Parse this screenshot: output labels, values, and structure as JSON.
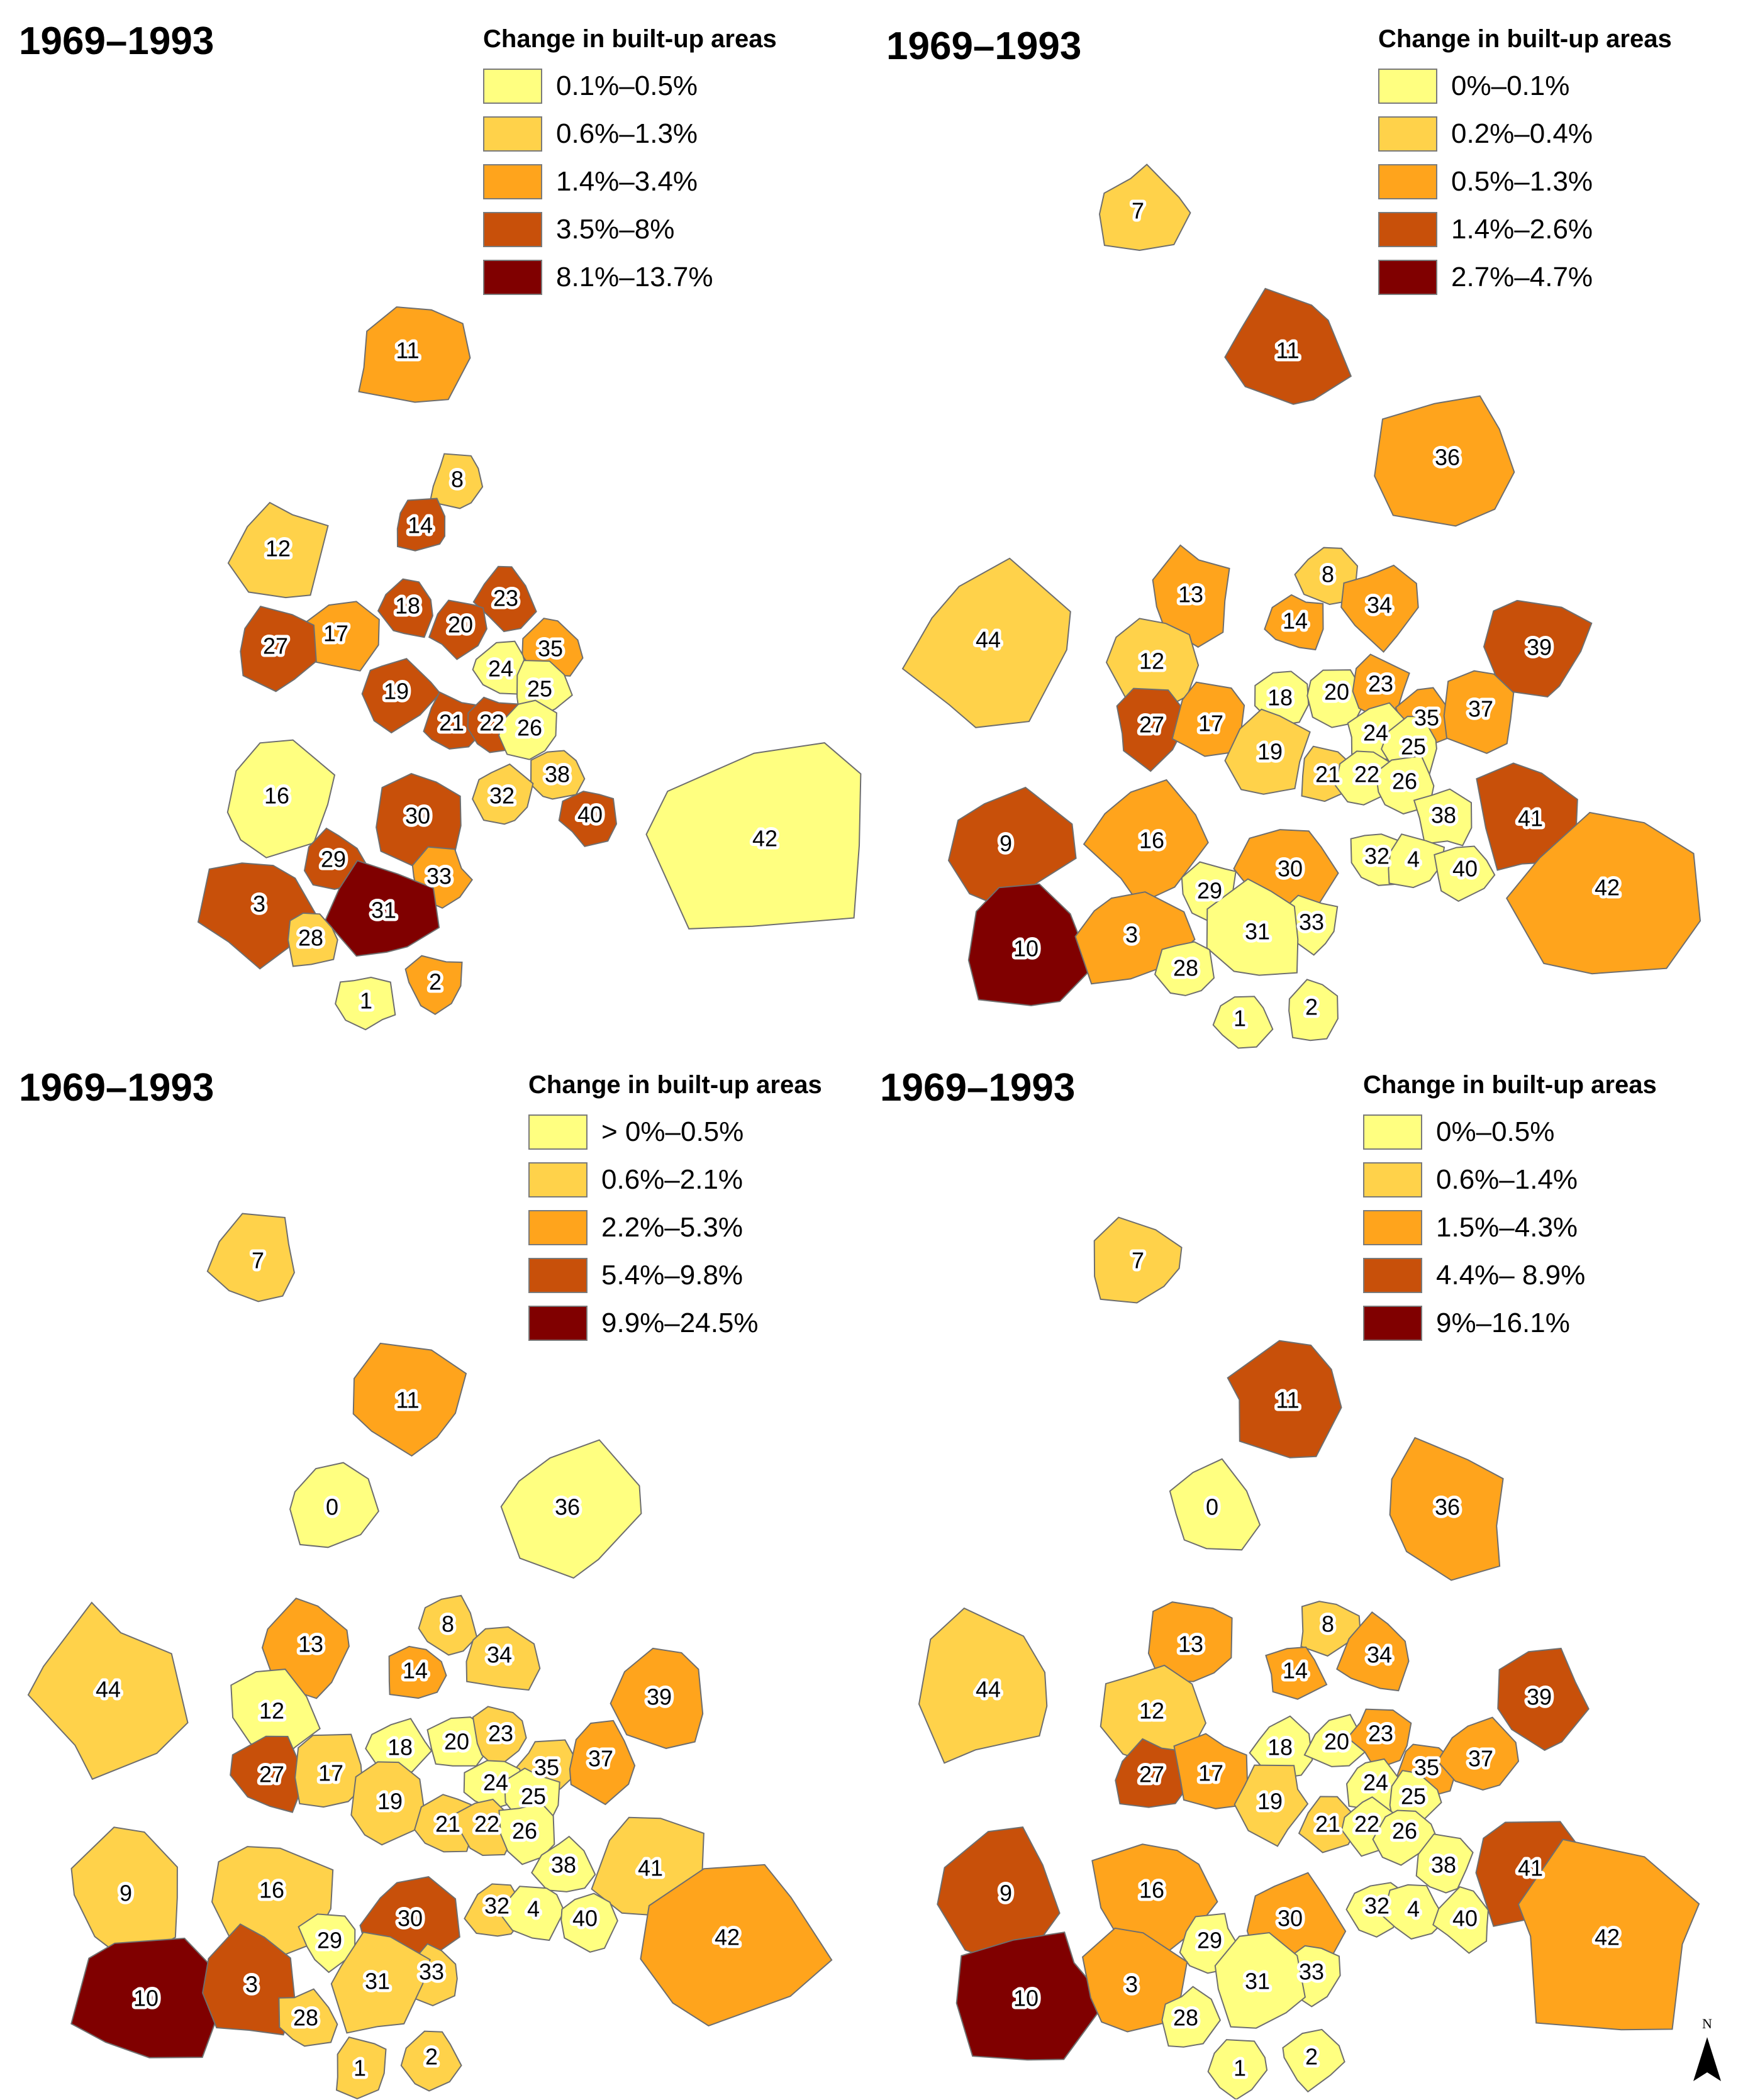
{
  "colors": {
    "c1": "#ffff80",
    "c2": "#ffd24a",
    "c3": "#ffa41c",
    "c4": "#c8500a",
    "c5": "#800000",
    "outline": "#6e6e6e"
  },
  "panels": [
    {
      "title": "1969–1993",
      "legend_title": "Change in built-up areas",
      "legend": [
        {
          "label": "0.1%–0.5%",
          "color": "#ffff80"
        },
        {
          "label": "0.6%–1.3%",
          "color": "#ffd24a"
        },
        {
          "label": "1.4%–3.4%",
          "color": "#ffa41c"
        },
        {
          "label": "3.5%–8%",
          "color": "#c8500a"
        },
        {
          "label": "8.1%–13.7%",
          "color": "#800000"
        }
      ],
      "regions": [
        {
          "id": "11",
          "cls": 3
        },
        {
          "id": "8",
          "cls": 2
        },
        {
          "id": "12",
          "cls": 2
        },
        {
          "id": "14",
          "cls": 4
        },
        {
          "id": "17",
          "cls": 3
        },
        {
          "id": "18",
          "cls": 4
        },
        {
          "id": "23",
          "cls": 4
        },
        {
          "id": "20",
          "cls": 4
        },
        {
          "id": "27",
          "cls": 4
        },
        {
          "id": "35",
          "cls": 3
        },
        {
          "id": "24",
          "cls": 1
        },
        {
          "id": "25",
          "cls": 1
        },
        {
          "id": "19",
          "cls": 4
        },
        {
          "id": "21",
          "cls": 4
        },
        {
          "id": "22",
          "cls": 4
        },
        {
          "id": "26",
          "cls": 1
        },
        {
          "id": "16",
          "cls": 1
        },
        {
          "id": "38",
          "cls": 2
        },
        {
          "id": "40",
          "cls": 4
        },
        {
          "id": "32",
          "cls": 2
        },
        {
          "id": "30",
          "cls": 4
        },
        {
          "id": "3",
          "cls": 4
        },
        {
          "id": "29",
          "cls": 4
        },
        {
          "id": "33",
          "cls": 3
        },
        {
          "id": "31",
          "cls": 5
        },
        {
          "id": "28",
          "cls": 2
        },
        {
          "id": "2",
          "cls": 3
        },
        {
          "id": "1",
          "cls": 1
        },
        {
          "id": "42",
          "cls": 1
        }
      ]
    },
    {
      "title": "1969–1993",
      "legend_title": "Change in built-up areas",
      "legend": [
        {
          "label": "0%–0.1%",
          "color": "#ffff80"
        },
        {
          "label": "0.2%–0.4%",
          "color": "#ffd24a"
        },
        {
          "label": "0.5%–1.3%",
          "color": "#ffa41c"
        },
        {
          "label": "1.4%–2.6%",
          "color": "#c8500a"
        },
        {
          "label": "2.7%–4.7%",
          "color": "#800000"
        }
      ],
      "regions": [
        {
          "id": "7",
          "cls": 2
        },
        {
          "id": "11",
          "cls": 4
        },
        {
          "id": "36",
          "cls": 3
        },
        {
          "id": "13",
          "cls": 3
        },
        {
          "id": "8",
          "cls": 2
        },
        {
          "id": "14",
          "cls": 3
        },
        {
          "id": "34",
          "cls": 3
        },
        {
          "id": "44",
          "cls": 2
        },
        {
          "id": "12",
          "cls": 2
        },
        {
          "id": "39",
          "cls": 4
        },
        {
          "id": "18",
          "cls": 1
        },
        {
          "id": "20",
          "cls": 1
        },
        {
          "id": "23",
          "cls": 3
        },
        {
          "id": "27",
          "cls": 4
        },
        {
          "id": "17",
          "cls": 3
        },
        {
          "id": "35",
          "cls": 3
        },
        {
          "id": "37",
          "cls": 3
        },
        {
          "id": "24",
          "cls": 1
        },
        {
          "id": "19",
          "cls": 2
        },
        {
          "id": "25",
          "cls": 1
        },
        {
          "id": "21",
          "cls": 2
        },
        {
          "id": "22",
          "cls": 1
        },
        {
          "id": "26",
          "cls": 1
        },
        {
          "id": "38",
          "cls": 1
        },
        {
          "id": "41",
          "cls": 4
        },
        {
          "id": "9",
          "cls": 4
        },
        {
          "id": "16",
          "cls": 3
        },
        {
          "id": "30",
          "cls": 3
        },
        {
          "id": "32",
          "cls": 1
        },
        {
          "id": "4",
          "cls": 1
        },
        {
          "id": "40",
          "cls": 1
        },
        {
          "id": "42",
          "cls": 3
        },
        {
          "id": "29",
          "cls": 1
        },
        {
          "id": "33",
          "cls": 1
        },
        {
          "id": "31",
          "cls": 1
        },
        {
          "id": "10",
          "cls": 5
        },
        {
          "id": "3",
          "cls": 3
        },
        {
          "id": "28",
          "cls": 1
        },
        {
          "id": "1",
          "cls": 1
        },
        {
          "id": "2",
          "cls": 1
        }
      ]
    },
    {
      "title": "1969–1993",
      "legend_title": "Change in built-up areas",
      "legend": [
        {
          "label": "> 0%–0.5%",
          "color": "#ffff80"
        },
        {
          "label": "0.6%–2.1%",
          "color": "#ffd24a"
        },
        {
          "label": "2.2%–5.3%",
          "color": "#ffa41c"
        },
        {
          "label": "5.4%–9.8%",
          "color": "#c8500a"
        },
        {
          "label": "9.9%–24.5%",
          "color": "#800000"
        }
      ],
      "regions": [
        {
          "id": "7",
          "cls": 2
        },
        {
          "id": "11",
          "cls": 3
        },
        {
          "id": "0",
          "cls": 1
        },
        {
          "id": "36",
          "cls": 1
        },
        {
          "id": "13",
          "cls": 3
        },
        {
          "id": "8",
          "cls": 2
        },
        {
          "id": "14",
          "cls": 3
        },
        {
          "id": "34",
          "cls": 2
        },
        {
          "id": "44",
          "cls": 2
        },
        {
          "id": "12",
          "cls": 1
        },
        {
          "id": "39",
          "cls": 3
        },
        {
          "id": "18",
          "cls": 1
        },
        {
          "id": "20",
          "cls": 1
        },
        {
          "id": "23",
          "cls": 2
        },
        {
          "id": "27",
          "cls": 4
        },
        {
          "id": "17",
          "cls": 2
        },
        {
          "id": "35",
          "cls": 2
        },
        {
          "id": "37",
          "cls": 3
        },
        {
          "id": "24",
          "cls": 1
        },
        {
          "id": "19",
          "cls": 2
        },
        {
          "id": "25",
          "cls": 1
        },
        {
          "id": "21",
          "cls": 2
        },
        {
          "id": "22",
          "cls": 2
        },
        {
          "id": "26",
          "cls": 1
        },
        {
          "id": "38",
          "cls": 1
        },
        {
          "id": "41",
          "cls": 2
        },
        {
          "id": "9",
          "cls": 2
        },
        {
          "id": "16",
          "cls": 2
        },
        {
          "id": "30",
          "cls": 4
        },
        {
          "id": "32",
          "cls": 2
        },
        {
          "id": "4",
          "cls": 1
        },
        {
          "id": "40",
          "cls": 1
        },
        {
          "id": "42",
          "cls": 3
        },
        {
          "id": "29",
          "cls": 1
        },
        {
          "id": "33",
          "cls": 2
        },
        {
          "id": "31",
          "cls": 2
        },
        {
          "id": "10",
          "cls": 5
        },
        {
          "id": "3",
          "cls": 4
        },
        {
          "id": "28",
          "cls": 2
        },
        {
          "id": "1",
          "cls": 2
        },
        {
          "id": "2",
          "cls": 2
        }
      ]
    },
    {
      "title": "1969–1993",
      "legend_title": "Change in built-up areas",
      "legend": [
        {
          "label": "0%–0.5%",
          "color": "#ffff80"
        },
        {
          "label": "0.6%–1.4%",
          "color": "#ffd24a"
        },
        {
          "label": "1.5%–4.3%",
          "color": "#ffa41c"
        },
        {
          "label": "4.4%– 8.9%",
          "color": "#c8500a"
        },
        {
          "label": "9%–16.1%",
          "color": "#800000"
        }
      ],
      "regions": [
        {
          "id": "7",
          "cls": 2
        },
        {
          "id": "11",
          "cls": 4
        },
        {
          "id": "0",
          "cls": 1
        },
        {
          "id": "36",
          "cls": 3
        },
        {
          "id": "13",
          "cls": 3
        },
        {
          "id": "8",
          "cls": 2
        },
        {
          "id": "14",
          "cls": 3
        },
        {
          "id": "34",
          "cls": 3
        },
        {
          "id": "44",
          "cls": 2
        },
        {
          "id": "12",
          "cls": 2
        },
        {
          "id": "39",
          "cls": 4
        },
        {
          "id": "18",
          "cls": 1
        },
        {
          "id": "20",
          "cls": 1
        },
        {
          "id": "23",
          "cls": 3
        },
        {
          "id": "27",
          "cls": 4
        },
        {
          "id": "17",
          "cls": 3
        },
        {
          "id": "35",
          "cls": 3
        },
        {
          "id": "37",
          "cls": 3
        },
        {
          "id": "24",
          "cls": 1
        },
        {
          "id": "19",
          "cls": 2
        },
        {
          "id": "25",
          "cls": 1
        },
        {
          "id": "21",
          "cls": 2
        },
        {
          "id": "22",
          "cls": 1
        },
        {
          "id": "26",
          "cls": 1
        },
        {
          "id": "38",
          "cls": 1
        },
        {
          "id": "41",
          "cls": 4
        },
        {
          "id": "9",
          "cls": 4
        },
        {
          "id": "16",
          "cls": 3
        },
        {
          "id": "30",
          "cls": 3
        },
        {
          "id": "32",
          "cls": 1
        },
        {
          "id": "4",
          "cls": 1
        },
        {
          "id": "40",
          "cls": 1
        },
        {
          "id": "42",
          "cls": 3
        },
        {
          "id": "29",
          "cls": 1
        },
        {
          "id": "33",
          "cls": 1
        },
        {
          "id": "31",
          "cls": 1
        },
        {
          "id": "10",
          "cls": 5
        },
        {
          "id": "3",
          "cls": 3
        },
        {
          "id": "28",
          "cls": 1
        },
        {
          "id": "1",
          "cls": 1
        },
        {
          "id": "2",
          "cls": 1
        }
      ]
    }
  ],
  "north_arrow": {
    "letter": "N"
  }
}
